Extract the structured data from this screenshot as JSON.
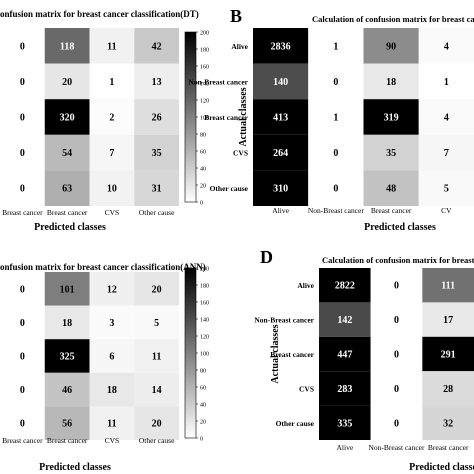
{
  "panels": [
    {
      "letter": "",
      "title": "onfusion matrix for breast cancer classification(DT)",
      "ylabel": "",
      "xlabel": "Predicted classes",
      "chart_data": {
        "type": "heatmap",
        "rows": [
          "",
          "",
          "",
          "",
          ""
        ],
        "columns": [
          "Breast cancer",
          "Breast cancer",
          "CVS",
          "Other cause"
        ],
        "values": [
          [
            0,
            118,
            11,
            42
          ],
          [
            0,
            20,
            1,
            13
          ],
          [
            0,
            320,
            2,
            26
          ],
          [
            0,
            54,
            7,
            35
          ],
          [
            0,
            63,
            10,
            31
          ]
        ],
        "vmin": 0,
        "vmax": 200,
        "colorbar_ticks": [
          0,
          20,
          40,
          60,
          80,
          100,
          120,
          140,
          160,
          180,
          200
        ],
        "colormap": "gray"
      }
    },
    {
      "letter": "B",
      "title": "Calculation of confusion matrix for breast cancer",
      "ylabel": "Actual classes",
      "xlabel": "Predicted classes",
      "chart_data": {
        "type": "heatmap",
        "rows": [
          "Alive",
          "Non-Breast cancer",
          "Breast cancer",
          "CVS",
          "Other cause"
        ],
        "columns": [
          "Alive",
          "Non-Breast cancer",
          "Breast cancer",
          "CV"
        ],
        "values": [
          [
            2836,
            1,
            90,
            4
          ],
          [
            140,
            0,
            18,
            1
          ],
          [
            413,
            1,
            319,
            4
          ],
          [
            264,
            0,
            35,
            7
          ],
          [
            310,
            0,
            48,
            5
          ]
        ],
        "vmin": 0,
        "vmax": 200,
        "colormap": "gray"
      }
    },
    {
      "letter": "",
      "title": "onfusion matrix for breast cancer classification(ANN)",
      "ylabel": "",
      "xlabel": "Predicted classes",
      "chart_data": {
        "type": "heatmap",
        "rows": [
          "",
          "",
          "",
          "",
          ""
        ],
        "columns": [
          "Breast cancer",
          "Breast cancer",
          "CVS",
          "Other cause"
        ],
        "values": [
          [
            0,
            101,
            12,
            20
          ],
          [
            0,
            18,
            3,
            5
          ],
          [
            0,
            325,
            6,
            11
          ],
          [
            0,
            46,
            18,
            14
          ],
          [
            0,
            56,
            11,
            20
          ]
        ],
        "vmin": 0,
        "vmax": 200,
        "colorbar_ticks": [
          0,
          20,
          40,
          60,
          80,
          100,
          120,
          140,
          160,
          180,
          200
        ],
        "colormap": "gray"
      }
    },
    {
      "letter": "D",
      "title": "Calculation of confusion matrix for breast canc",
      "ylabel": "Actual classes",
      "xlabel": "Predicted classes",
      "chart_data": {
        "type": "heatmap",
        "rows": [
          "Alive",
          "Non-Breast cancer",
          "Breast cancer",
          "CVS",
          "Other cause"
        ],
        "columns": [
          "Alive",
          "Non-Breast cancer",
          "Breast cancer"
        ],
        "values": [
          [
            2822,
            0,
            111
          ],
          [
            142,
            0,
            17
          ],
          [
            447,
            0,
            291
          ],
          [
            283,
            0,
            28
          ],
          [
            335,
            0,
            32
          ]
        ],
        "vmin": 0,
        "vmax": 200,
        "colormap": "gray"
      }
    }
  ]
}
